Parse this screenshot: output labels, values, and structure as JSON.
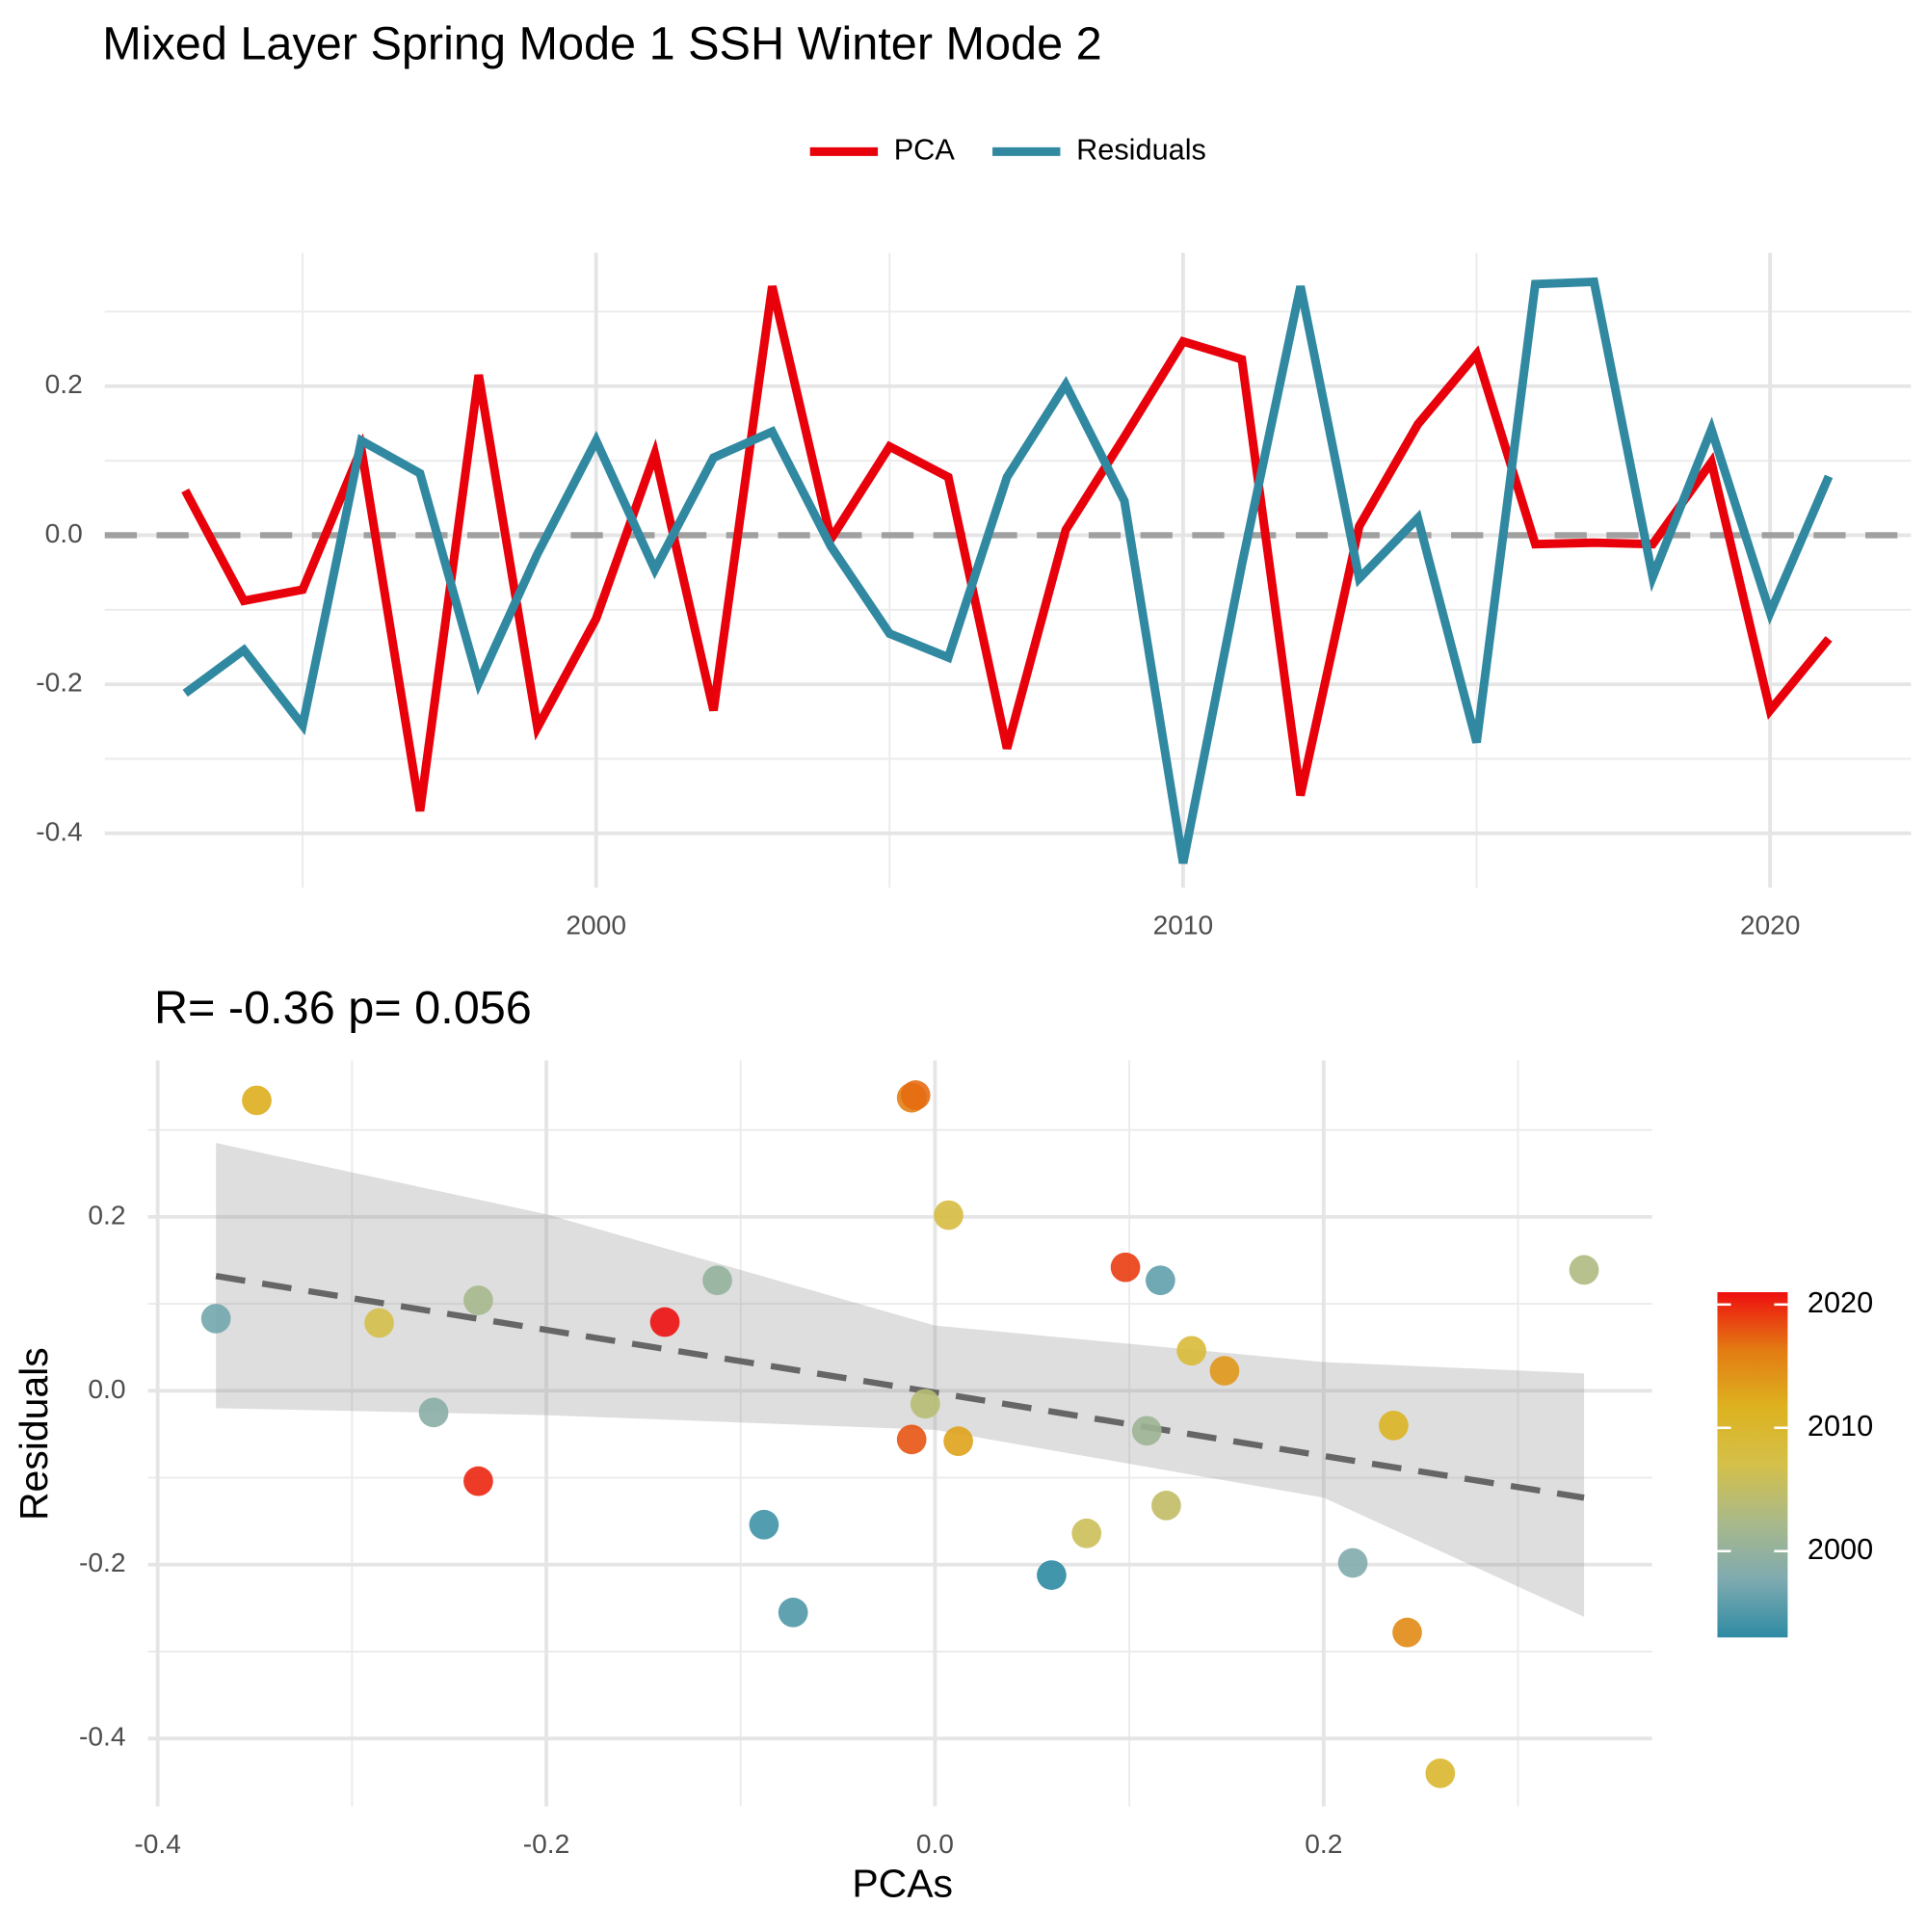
{
  "chart_data": [
    {
      "type": "line",
      "title": "Mixed Layer Spring Mode 1 SSH Winter Mode 2",
      "x": [
        1993,
        1994,
        1995,
        1996,
        1997,
        1998,
        1999,
        2000,
        2001,
        2002,
        2003,
        2004,
        2005,
        2006,
        2007,
        2008,
        2009,
        2010,
        2011,
        2012,
        2013,
        2014,
        2015,
        2016,
        2017,
        2018,
        2019,
        2020,
        2021
      ],
      "series": [
        {
          "name": "PCA",
          "color": "#e8000b",
          "values": [
            0.06,
            -0.088,
            -0.073,
            0.116,
            -0.37,
            0.215,
            -0.258,
            -0.112,
            0.109,
            -0.235,
            0.334,
            -0.005,
            0.119,
            0.078,
            -0.286,
            0.007,
            0.132,
            0.26,
            0.236,
            -0.349,
            0.012,
            0.149,
            0.243,
            -0.012,
            -0.01,
            -0.012,
            0.098,
            -0.235,
            -0.139
          ]
        },
        {
          "name": "Residuals",
          "color": "#3189a1",
          "values": [
            -0.212,
            -0.154,
            -0.255,
            0.127,
            0.083,
            -0.198,
            -0.025,
            0.127,
            -0.046,
            0.104,
            0.139,
            -0.015,
            -0.132,
            -0.164,
            0.078,
            0.202,
            0.046,
            -0.44,
            -0.04,
            0.334,
            -0.058,
            0.023,
            -0.278,
            0.337,
            0.34,
            -0.056,
            0.142,
            -0.104,
            0.079
          ]
        }
      ],
      "hline": 0,
      "xlim": [
        1991.63,
        2022.4
      ],
      "xticks": [
        2000,
        2010,
        2020
      ],
      "ylim": [
        -0.473,
        0.379
      ],
      "yticks": [
        {
          "value": -0.4,
          "label": "-0.4"
        },
        {
          "value": -0.2,
          "label": "-0.2"
        },
        {
          "value": 0,
          "label": "0.0"
        },
        0.2
      ],
      "grid": true,
      "legend": "top"
    },
    {
      "type": "scatter",
      "title": "R= -0.36  p= 0.056",
      "x_label": "PCAs",
      "y_label": "Residuals",
      "x": [
        0.06,
        -0.088,
        -0.073,
        0.116,
        -0.37,
        0.215,
        -0.258,
        -0.112,
        0.109,
        -0.235,
        0.334,
        -0.005,
        0.119,
        0.078,
        -0.286,
        0.007,
        0.132,
        0.26,
        0.236,
        -0.349,
        0.012,
        0.149,
        0.243,
        -0.012,
        -0.01,
        -0.012,
        0.098,
        -0.235,
        -0.139
      ],
      "y": [
        -0.212,
        -0.154,
        -0.255,
        0.127,
        0.083,
        -0.198,
        -0.025,
        0.127,
        -0.046,
        0.104,
        0.139,
        -0.015,
        -0.132,
        -0.164,
        0.078,
        0.202,
        0.046,
        -0.44,
        -0.04,
        0.334,
        -0.058,
        0.023,
        -0.278,
        0.337,
        0.34,
        -0.056,
        0.142,
        -0.104,
        0.079
      ],
      "color_values": [
        1993,
        1994,
        1995,
        1996,
        1997,
        1998,
        1999,
        2000,
        2001,
        2002,
        2003,
        2004,
        2005,
        2006,
        2007,
        2008,
        2009,
        2010,
        2011,
        2012,
        2013,
        2014,
        2015,
        2016,
        2017,
        2018,
        2019,
        2020,
        2021
      ],
      "fit": {
        "x": [
          -0.37,
          -0.2,
          0,
          0.2,
          0.334
        ],
        "y": [
          0.132,
          0.07,
          -0.002,
          -0.075,
          -0.123
        ],
        "upper": [
          0.285,
          0.203,
          0.075,
          0.033,
          0.02
        ],
        "lower": [
          -0.02,
          -0.028,
          -0.045,
          -0.123,
          -0.26
        ]
      },
      "colorbar": {
        "limits": [
          1993,
          2021
        ],
        "ticks": [
          2000,
          2010,
          2020
        ],
        "colors": [
          "#2e8ba3",
          "#7eaab0",
          "#a9b98a",
          "#d4c04a",
          "#ddb21f",
          "#e37b13",
          "#ee0f0f"
        ]
      },
      "xlim": [
        -0.405,
        0.369
      ],
      "xticks": [
        -0.4,
        -0.2,
        {
          "value": 0,
          "label": "0.0"
        },
        0.2
      ],
      "ylim": [
        -0.478,
        0.38
      ],
      "yticks": [
        {
          "value": -0.4,
          "label": "-0.4"
        },
        {
          "value": -0.2,
          "label": "-0.2"
        },
        {
          "value": 0,
          "label": "0.0"
        },
        0.2
      ],
      "grid": true
    }
  ]
}
